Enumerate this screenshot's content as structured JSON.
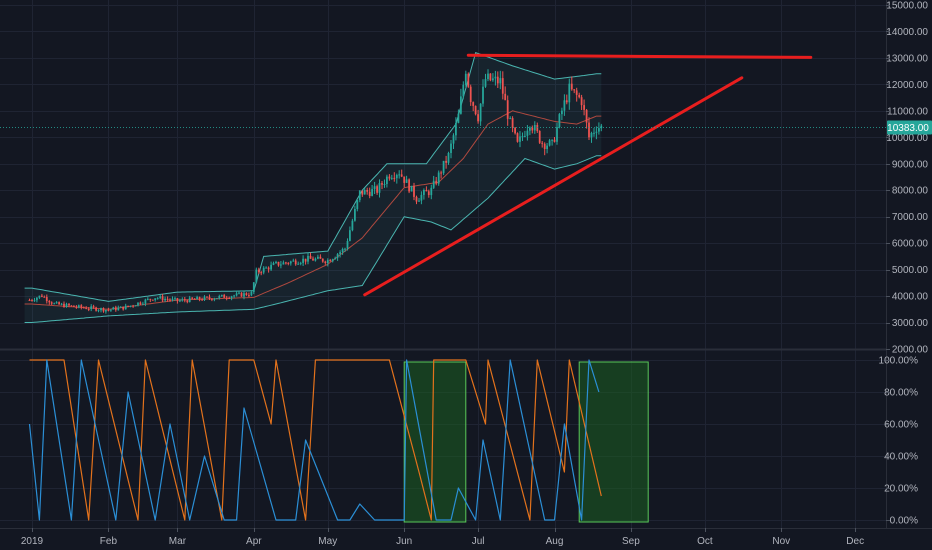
{
  "colors": {
    "background": "#131722",
    "grid": "#1f2433",
    "bull": "#26a69a",
    "bear": "#ef5350",
    "band": "#4ab5b0",
    "basis": "#b0493f",
    "trendline": "#e81e1e",
    "osc_orange": "#e3721c",
    "osc_blue": "#2b8fd6",
    "highlight_fill": "#1b5e20",
    "highlight_stroke": "#5ac85a",
    "price_badge": "#26a69a"
  },
  "current_price": {
    "value": 10383,
    "label": "10383.00"
  },
  "chart_data": [
    {
      "type": "candlestick",
      "title": "",
      "price_axis": {
        "ticks": [
          2000,
          3000,
          4000,
          5000,
          6000,
          7000,
          8000,
          9000,
          10000,
          11000,
          12000,
          13000,
          14000,
          15000
        ],
        "tick_labels": [
          "2000.00",
          "3000.00",
          "4000.00",
          "5000.00",
          "6000.00",
          "7000.00",
          "8000.00",
          "9000.00",
          "10000.00",
          "11000.00",
          "12000.00",
          "13000.00",
          "14000.00",
          "15000.00"
        ],
        "ylim": [
          2000,
          15000
        ]
      },
      "time_axis": {
        "start_date": "2019-01-01",
        "end_date": "2019-12-31",
        "ticks": [
          "2019-01-01",
          "2019-02-01",
          "2019-03-01",
          "2019-04-01",
          "2019-05-01",
          "2019-06-01",
          "2019-07-01",
          "2019-08-01",
          "2019-09-01",
          "2019-10-01",
          "2019-11-01",
          "2019-12-01"
        ],
        "tick_labels": [
          "2019",
          "Feb",
          "Mar",
          "Apr",
          "May",
          "Jun",
          "Jul",
          "Aug",
          "Sep",
          "Oct",
          "Nov",
          "Dec"
        ]
      },
      "price_anchors": [
        [
          "2018-12-31",
          3850
        ],
        [
          "2019-01-05",
          4020
        ],
        [
          "2019-01-10",
          3700
        ],
        [
          "2019-01-20",
          3580
        ],
        [
          "2019-02-01",
          3480
        ],
        [
          "2019-02-08",
          3580
        ],
        [
          "2019-02-20",
          3950
        ],
        [
          "2019-03-01",
          3820
        ],
        [
          "2019-03-15",
          3930
        ],
        [
          "2019-03-31",
          4100
        ],
        [
          "2019-04-02",
          4900
        ],
        [
          "2019-04-10",
          5200
        ],
        [
          "2019-04-23",
          5400
        ],
        [
          "2019-05-01",
          5350
        ],
        [
          "2019-05-08",
          5800
        ],
        [
          "2019-05-14",
          7900
        ],
        [
          "2019-05-21",
          8000
        ],
        [
          "2019-05-26",
          8600
        ],
        [
          "2019-05-30",
          8700
        ],
        [
          "2019-06-06",
          7700
        ],
        [
          "2019-06-12",
          8000
        ],
        [
          "2019-06-19",
          9300
        ],
        [
          "2019-06-23",
          10800
        ],
        [
          "2019-06-26",
          12600
        ],
        [
          "2019-06-28",
          11500
        ],
        [
          "2019-07-01",
          10800
        ],
        [
          "2019-07-04",
          12200
        ],
        [
          "2019-07-10",
          12100
        ],
        [
          "2019-07-14",
          10500
        ],
        [
          "2019-07-17",
          9700
        ],
        [
          "2019-07-22",
          10600
        ],
        [
          "2019-07-27",
          9800
        ],
        [
          "2019-07-31",
          9700
        ],
        [
          "2019-08-04",
          11000
        ],
        [
          "2019-08-07",
          11800
        ],
        [
          "2019-08-12",
          11400
        ],
        [
          "2019-08-15",
          10000
        ],
        [
          "2019-08-18",
          10400
        ],
        [
          "2019-08-20",
          10383
        ]
      ],
      "bollinger": {
        "upper": [
          [
            "2019-01-01",
            4300
          ],
          [
            "2019-02-01",
            3800
          ],
          [
            "2019-03-01",
            4150
          ],
          [
            "2019-04-01",
            4200
          ],
          [
            "2019-04-05",
            5500
          ],
          [
            "2019-05-01",
            5700
          ],
          [
            "2019-05-15",
            8000
          ],
          [
            "2019-05-25",
            9000
          ],
          [
            "2019-06-10",
            9000
          ],
          [
            "2019-06-22",
            10500
          ],
          [
            "2019-06-30",
            13200
          ],
          [
            "2019-07-15",
            12700
          ],
          [
            "2019-08-01",
            12200
          ],
          [
            "2019-08-10",
            12300
          ],
          [
            "2019-08-18",
            12400
          ]
        ],
        "basis": [
          [
            "2019-01-01",
            3700
          ],
          [
            "2019-02-01",
            3500
          ],
          [
            "2019-03-01",
            3850
          ],
          [
            "2019-04-01",
            3950
          ],
          [
            "2019-04-15",
            4500
          ],
          [
            "2019-05-01",
            5200
          ],
          [
            "2019-05-15",
            6200
          ],
          [
            "2019-06-01",
            8100
          ],
          [
            "2019-06-15",
            8300
          ],
          [
            "2019-06-25",
            9200
          ],
          [
            "2019-07-05",
            10500
          ],
          [
            "2019-07-15",
            11000
          ],
          [
            "2019-08-01",
            10600
          ],
          [
            "2019-08-10",
            10500
          ],
          [
            "2019-08-18",
            10800
          ]
        ],
        "lower": [
          [
            "2019-01-01",
            3000
          ],
          [
            "2019-02-01",
            3250
          ],
          [
            "2019-03-01",
            3400
          ],
          [
            "2019-04-01",
            3500
          ],
          [
            "2019-04-10",
            3700
          ],
          [
            "2019-05-01",
            4200
          ],
          [
            "2019-05-15",
            4400
          ],
          [
            "2019-06-01",
            7000
          ],
          [
            "2019-06-12",
            6800
          ],
          [
            "2019-06-20",
            6500
          ],
          [
            "2019-07-05",
            7700
          ],
          [
            "2019-07-20",
            9200
          ],
          [
            "2019-08-01",
            8800
          ],
          [
            "2019-08-10",
            9000
          ],
          [
            "2019-08-18",
            9300
          ]
        ]
      },
      "annotations": [
        {
          "kind": "trendline",
          "from": [
            "2019-05-16",
            4050
          ],
          "to": [
            "2019-10-16",
            12250
          ]
        },
        {
          "kind": "trendline",
          "from": [
            "2019-06-27",
            13100
          ],
          "to": [
            "2019-11-13",
            13020
          ]
        }
      ]
    },
    {
      "type": "line",
      "title": "",
      "y_axis": {
        "ticks": [
          0,
          20,
          40,
          60,
          80,
          100
        ],
        "tick_labels": [
          "0.00%",
          "20.00%",
          "40.00%",
          "60.00%",
          "80.00%",
          "100.00%"
        ],
        "ylim": [
          -5,
          105
        ]
      },
      "series": [
        {
          "color_key": "osc_orange",
          "pattern": "sawtooth",
          "points": [
            [
              "2018-12-31",
              100
            ],
            [
              "2019-01-14",
              100
            ],
            [
              "2019-01-24",
              0
            ],
            [
              "2019-01-28",
              100
            ],
            [
              "2019-02-13",
              0
            ],
            [
              "2019-02-16",
              100
            ],
            [
              "2019-03-04",
              0
            ],
            [
              "2019-03-07",
              100
            ],
            [
              "2019-03-19",
              0
            ],
            [
              "2019-03-22",
              100
            ],
            [
              "2019-04-01",
              100
            ],
            [
              "2019-04-08",
              60
            ],
            [
              "2019-04-10",
              100
            ],
            [
              "2019-04-22",
              0
            ],
            [
              "2019-04-26",
              100
            ],
            [
              "2019-05-14",
              100
            ],
            [
              "2019-05-26",
              100
            ],
            [
              "2019-06-07",
              30
            ],
            [
              "2019-06-12",
              0
            ],
            [
              "2019-06-13",
              100
            ],
            [
              "2019-06-26",
              100
            ],
            [
              "2019-07-04",
              60
            ],
            [
              "2019-07-05",
              100
            ],
            [
              "2019-07-22",
              0
            ],
            [
              "2019-07-25",
              100
            ],
            [
              "2019-08-05",
              30
            ],
            [
              "2019-08-07",
              100
            ],
            [
              "2019-08-20",
              15
            ]
          ]
        },
        {
          "color_key": "osc_blue",
          "pattern": "sawtooth",
          "points": [
            [
              "2018-12-31",
              60
            ],
            [
              "2019-01-04",
              0
            ],
            [
              "2019-01-07",
              100
            ],
            [
              "2019-01-17",
              0
            ],
            [
              "2019-01-21",
              100
            ],
            [
              "2019-02-04",
              0
            ],
            [
              "2019-02-09",
              80
            ],
            [
              "2019-02-20",
              0
            ],
            [
              "2019-02-26",
              60
            ],
            [
              "2019-03-06",
              0
            ],
            [
              "2019-03-12",
              40
            ],
            [
              "2019-03-20",
              0
            ],
            [
              "2019-03-25",
              0
            ],
            [
              "2019-03-28",
              70
            ],
            [
              "2019-04-10",
              0
            ],
            [
              "2019-04-18",
              0
            ],
            [
              "2019-04-22",
              50
            ],
            [
              "2019-05-05",
              0
            ],
            [
              "2019-05-10",
              0
            ],
            [
              "2019-05-14",
              10
            ],
            [
              "2019-05-20",
              0
            ],
            [
              "2019-06-01",
              0
            ],
            [
              "2019-06-02",
              100
            ],
            [
              "2019-06-14",
              0
            ],
            [
              "2019-06-20",
              0
            ],
            [
              "2019-06-23",
              20
            ],
            [
              "2019-06-30",
              0
            ],
            [
              "2019-07-03",
              50
            ],
            [
              "2019-07-10",
              0
            ],
            [
              "2019-07-14",
              100
            ],
            [
              "2019-07-28",
              0
            ],
            [
              "2019-08-01",
              0
            ],
            [
              "2019-08-05",
              60
            ],
            [
              "2019-08-12",
              0
            ],
            [
              "2019-08-15",
              100
            ],
            [
              "2019-08-19",
              80
            ]
          ]
        }
      ],
      "highlights": [
        {
          "from": "2019-06-01",
          "to": "2019-06-26"
        },
        {
          "from": "2019-08-11",
          "to": "2019-09-08"
        }
      ]
    }
  ]
}
